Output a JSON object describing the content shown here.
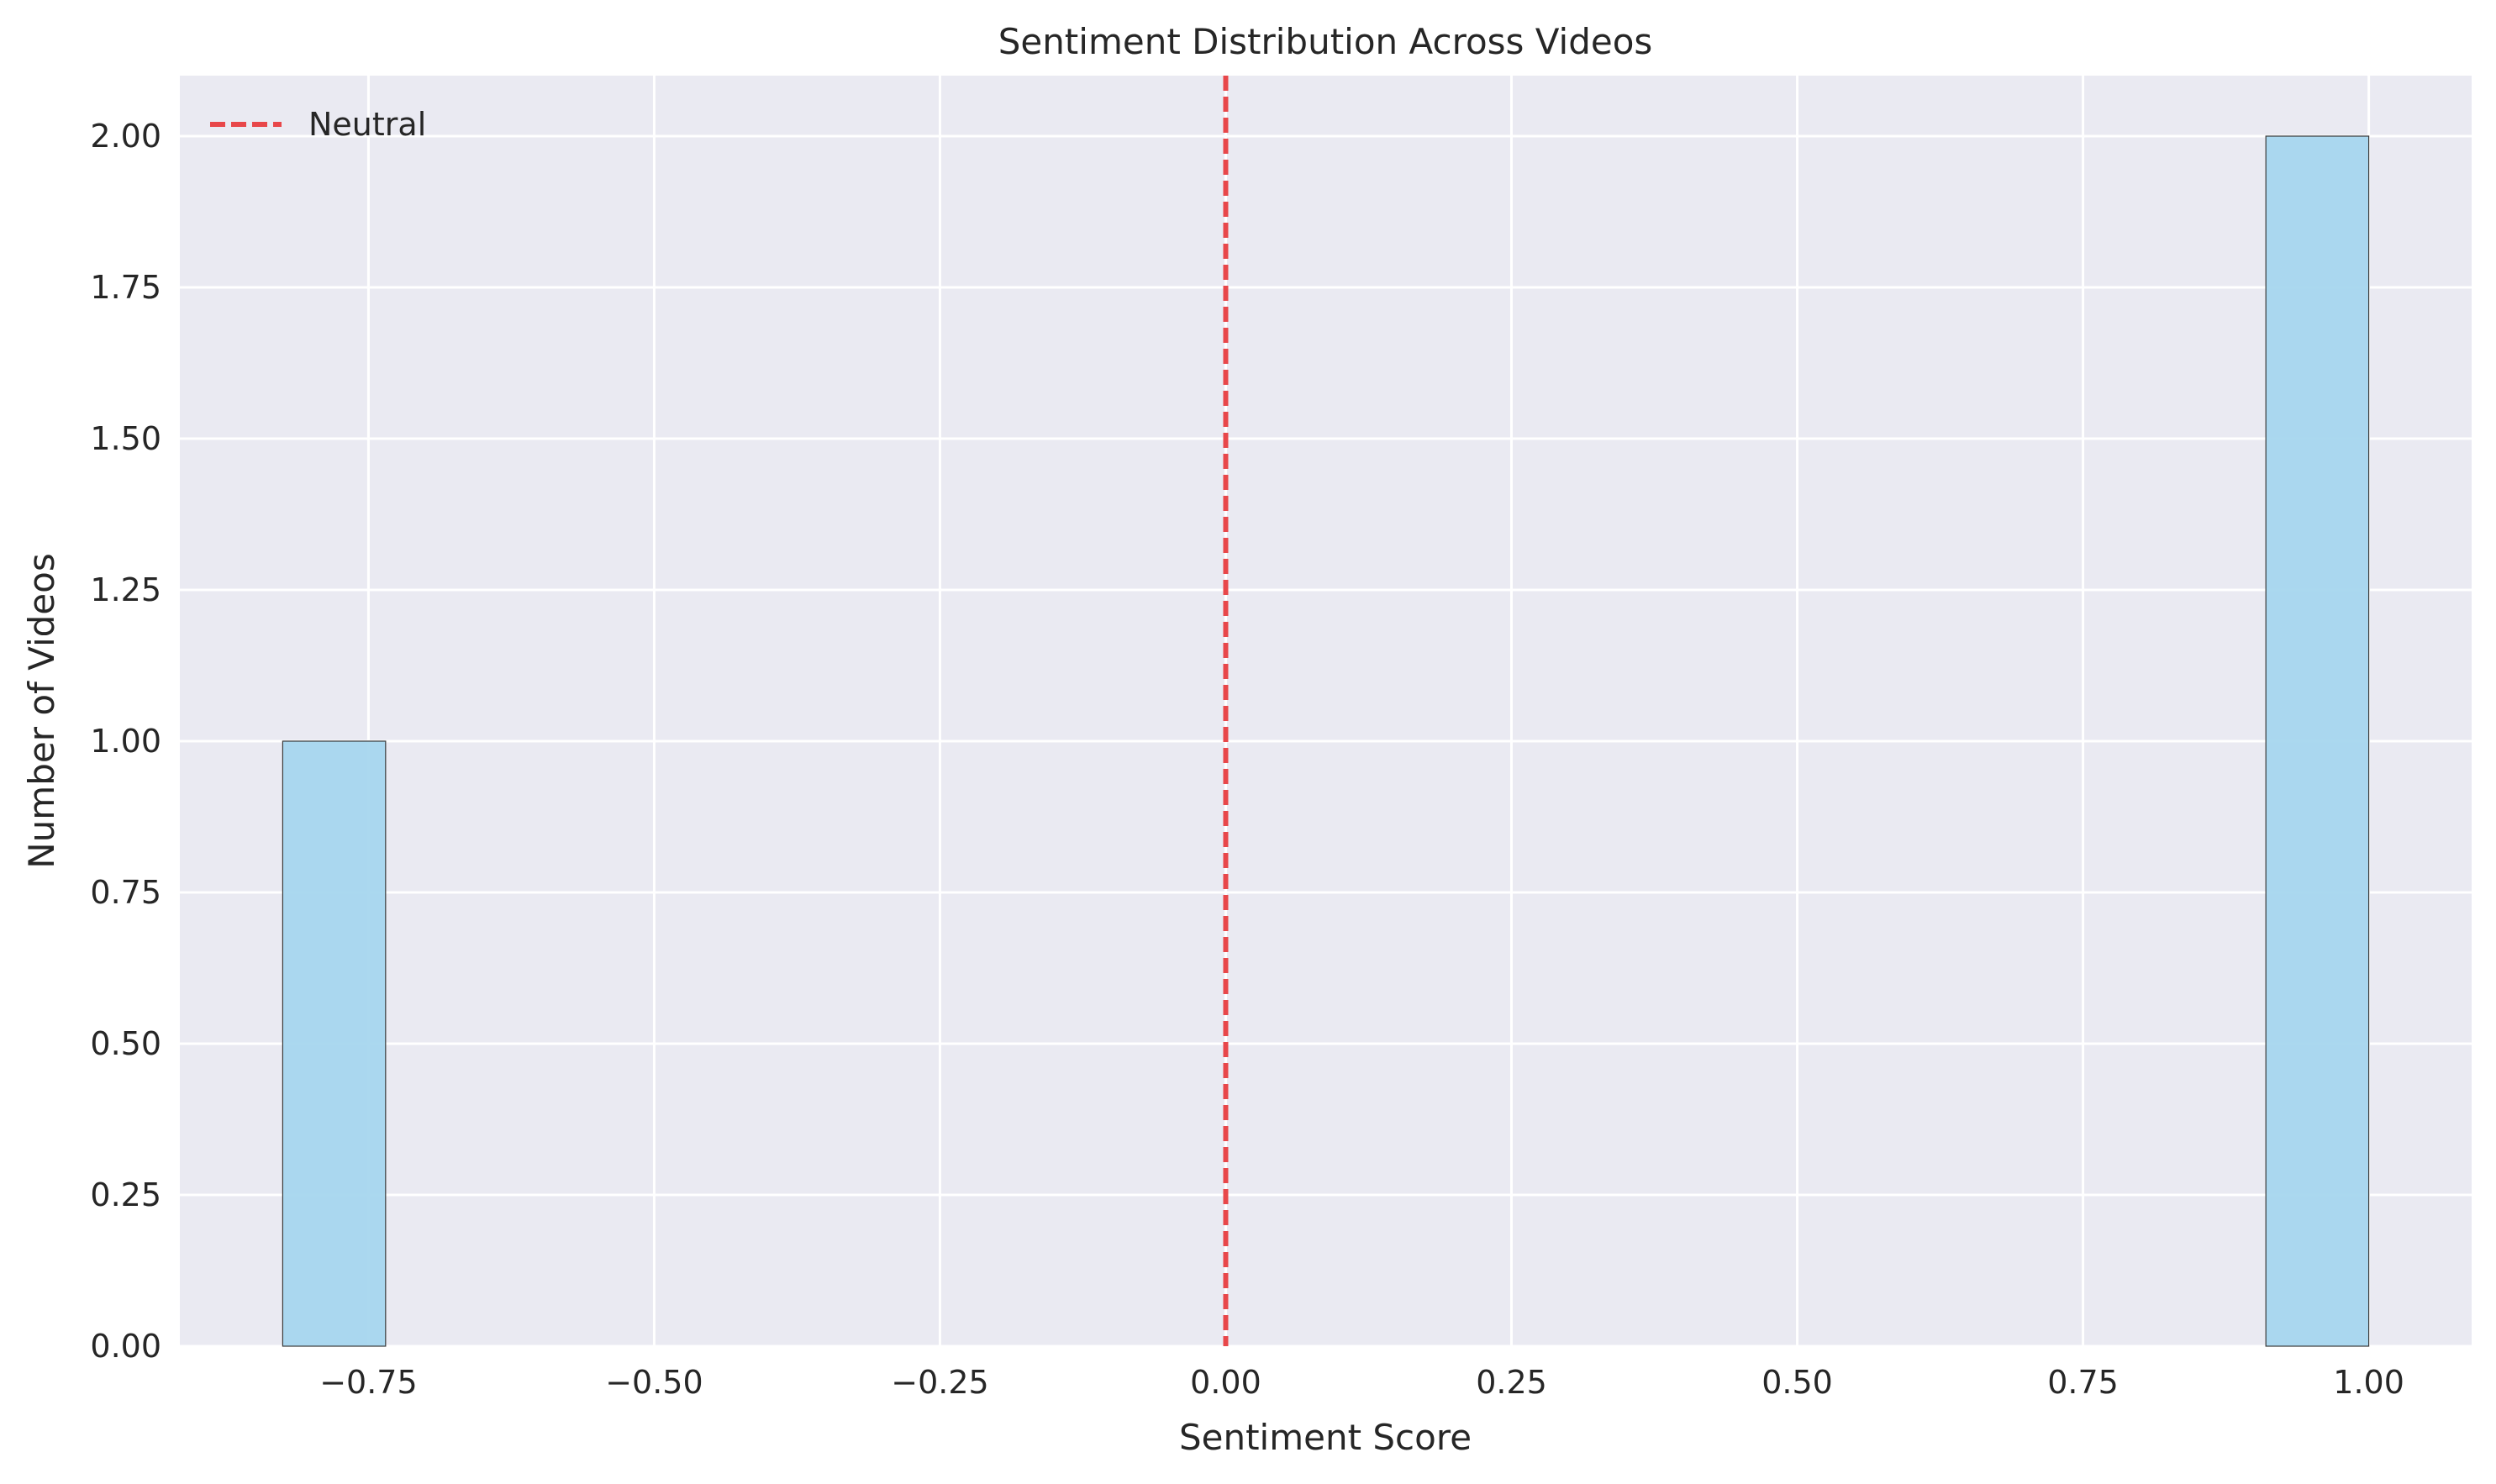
{
  "chart_data": {
    "type": "bar",
    "title": "Sentiment Distribution Across Videos",
    "xlabel": "Sentiment Score",
    "ylabel": "Number of Videos",
    "xlim": [
      -0.915,
      1.09
    ],
    "ylim": [
      0,
      2.1
    ],
    "x_ticks": [
      -0.75,
      -0.5,
      -0.25,
      0.0,
      0.25,
      0.5,
      0.75,
      1.0
    ],
    "x_tick_labels": [
      "−0.75",
      "−0.50",
      "−0.25",
      "0.00",
      "0.25",
      "0.50",
      "0.75",
      "1.00"
    ],
    "y_ticks": [
      0,
      0.25,
      0.5,
      0.75,
      1.0,
      1.25,
      1.5,
      1.75,
      2.0
    ],
    "y_tick_labels": [
      "0.00",
      "0.25",
      "0.50",
      "0.75",
      "1.00",
      "1.25",
      "1.50",
      "1.75",
      "2.00"
    ],
    "bins": [
      {
        "x_start": -0.825,
        "x_end": -0.735,
        "count": 1
      },
      {
        "x_start": 0.91,
        "x_end": 1.0,
        "count": 2
      }
    ],
    "reference_line": {
      "x": 0.0,
      "label": "Neutral",
      "color": "#e8474a",
      "style": "dashed"
    },
    "legend": {
      "placement": "top-left",
      "entries": [
        "Neutral"
      ]
    },
    "grid": true,
    "colors": {
      "bar": "#a6d6ee",
      "bar_edge": "#3a3a3a",
      "background": "#eaeaf2",
      "grid": "#ffffff"
    }
  }
}
